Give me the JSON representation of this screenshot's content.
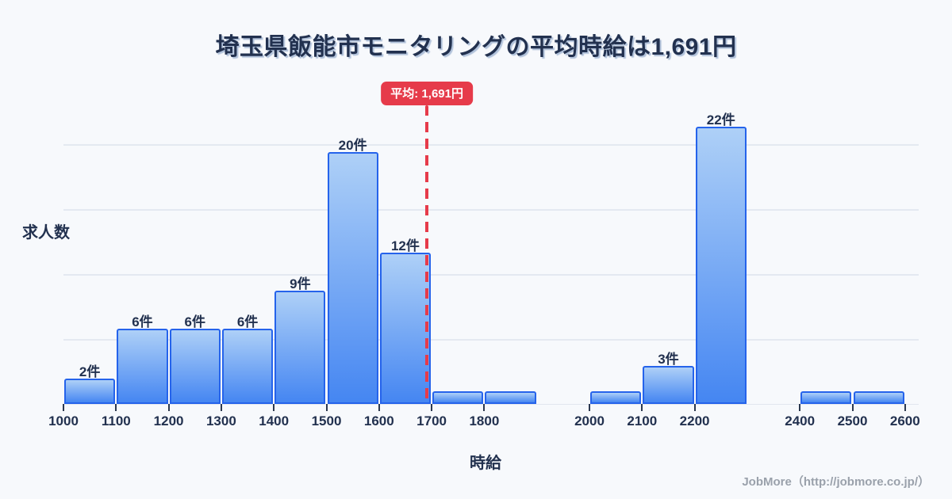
{
  "title": "埼玉県飯能市モニタリングの平均時給は1,691円",
  "axis": {
    "y_label": "求人数",
    "x_label": "時給"
  },
  "average": {
    "value": 1691,
    "badge": "平均: 1,691円"
  },
  "footer": "JobMore（http://jobmore.co.jp/）",
  "colors": {
    "background": "#f7f9fc",
    "title_text": "#22314f",
    "bar_border": "#2563eb",
    "bar_gradient_top": "#aed0f7",
    "bar_gradient_bottom": "#4586f2",
    "average_red": "#e63b4a",
    "gridline": "#e4e9f1",
    "footer_text": "#9aa1ab"
  },
  "chart_data": {
    "type": "bar",
    "title": "埼玉県飯能市モニタリングの平均時給は1,691円",
    "xlabel": "時給",
    "ylabel": "求人数",
    "x_unit": "円",
    "count_unit": "件",
    "bin_width": 100,
    "bins": [
      {
        "start": 1000,
        "end": 1100,
        "count": 2,
        "label": "2件"
      },
      {
        "start": 1100,
        "end": 1200,
        "count": 6,
        "label": "6件"
      },
      {
        "start": 1200,
        "end": 1300,
        "count": 6,
        "label": "6件"
      },
      {
        "start": 1300,
        "end": 1400,
        "count": 6,
        "label": "6件"
      },
      {
        "start": 1400,
        "end": 1500,
        "count": 9,
        "label": "9件"
      },
      {
        "start": 1500,
        "end": 1600,
        "count": 20,
        "label": "20件"
      },
      {
        "start": 1600,
        "end": 1700,
        "count": 12,
        "label": "12件"
      },
      {
        "start": 1700,
        "end": 1800,
        "count": 1,
        "label": null
      },
      {
        "start": 1800,
        "end": 1900,
        "count": 1,
        "label": null
      },
      {
        "start": 1900,
        "end": 2000,
        "count": 0,
        "label": null
      },
      {
        "start": 2000,
        "end": 2100,
        "count": 1,
        "label": null
      },
      {
        "start": 2100,
        "end": 2200,
        "count": 3,
        "label": "3件"
      },
      {
        "start": 2200,
        "end": 2300,
        "count": 22,
        "label": "22件"
      },
      {
        "start": 2300,
        "end": 2400,
        "count": 0,
        "label": null
      },
      {
        "start": 2400,
        "end": 2500,
        "count": 1,
        "label": null
      },
      {
        "start": 2500,
        "end": 2600,
        "count": 1,
        "label": null
      }
    ],
    "x_ticks": [
      1000,
      1100,
      1200,
      1300,
      1400,
      1500,
      1600,
      1700,
      1800,
      2000,
      2100,
      2200,
      2400,
      2500,
      2600
    ],
    "xlim": [
      1000,
      2600
    ],
    "y_gridlines_approx": [
      5,
      10,
      15,
      20
    ],
    "grid": "horizontal",
    "legend": "none",
    "average_line": {
      "value": 1691,
      "label": "平均: 1,691円",
      "style": "red-dashed-vertical"
    }
  }
}
